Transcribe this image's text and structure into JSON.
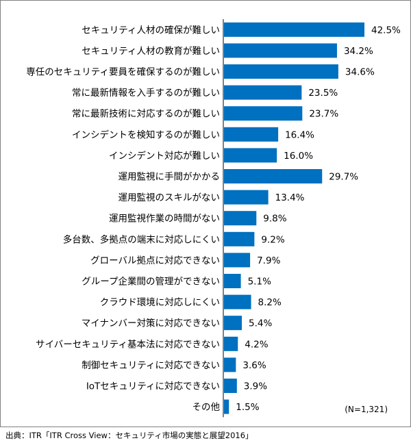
{
  "chart_data": {
    "type": "bar",
    "orientation": "horizontal",
    "categories": [
      "セキュリティ人材の確保が難しい",
      "セキュリティ人材の教育が難しい",
      "専任のセキュリティ要員を確保するのが難しい",
      "常に最新情報を入手するのが難しい",
      "常に最新技術に対応するのが難しい",
      "インシデントを検知するのが難しい",
      "インシデント対応が難しい",
      "運用監視に手間がかかる",
      "運用監視のスキルがない",
      "運用監視作業の時間がない",
      "多台数、多拠点の端末に対応しにくい",
      "グローバル拠点に対応できない",
      "グループ企業間の管理ができない",
      "クラウド環境に対応しにくい",
      "マイナンバー対策に対応できない",
      "サイバーセキュリティ基本法に対応できない",
      "制御セキュリティに対応できない",
      "IoTセキュリティに対応できない",
      "その他"
    ],
    "values": [
      42.5,
      34.2,
      34.6,
      23.5,
      23.7,
      16.4,
      16.0,
      29.7,
      13.4,
      9.8,
      9.2,
      7.9,
      5.1,
      8.2,
      5.4,
      4.2,
      3.6,
      3.9,
      1.5
    ],
    "value_labels": [
      "42.5%",
      "34.2%",
      "34.6%",
      "23.5%",
      "23.7%",
      "16.4%",
      "16.0%",
      "29.7%",
      "13.4%",
      "9.8%",
      "9.2%",
      "7.9%",
      "5.1%",
      "8.2%",
      "5.4%",
      "4.2%",
      "3.6%",
      "3.9%",
      "1.5%"
    ],
    "xlim": [
      0,
      50
    ],
    "bar_color": "#0070C0",
    "grid": false,
    "legend": "none"
  },
  "note": "(N=1,321)",
  "source": "出典：ITR「ITR Cross View：セキュリティ市場の実態と展望2016」"
}
